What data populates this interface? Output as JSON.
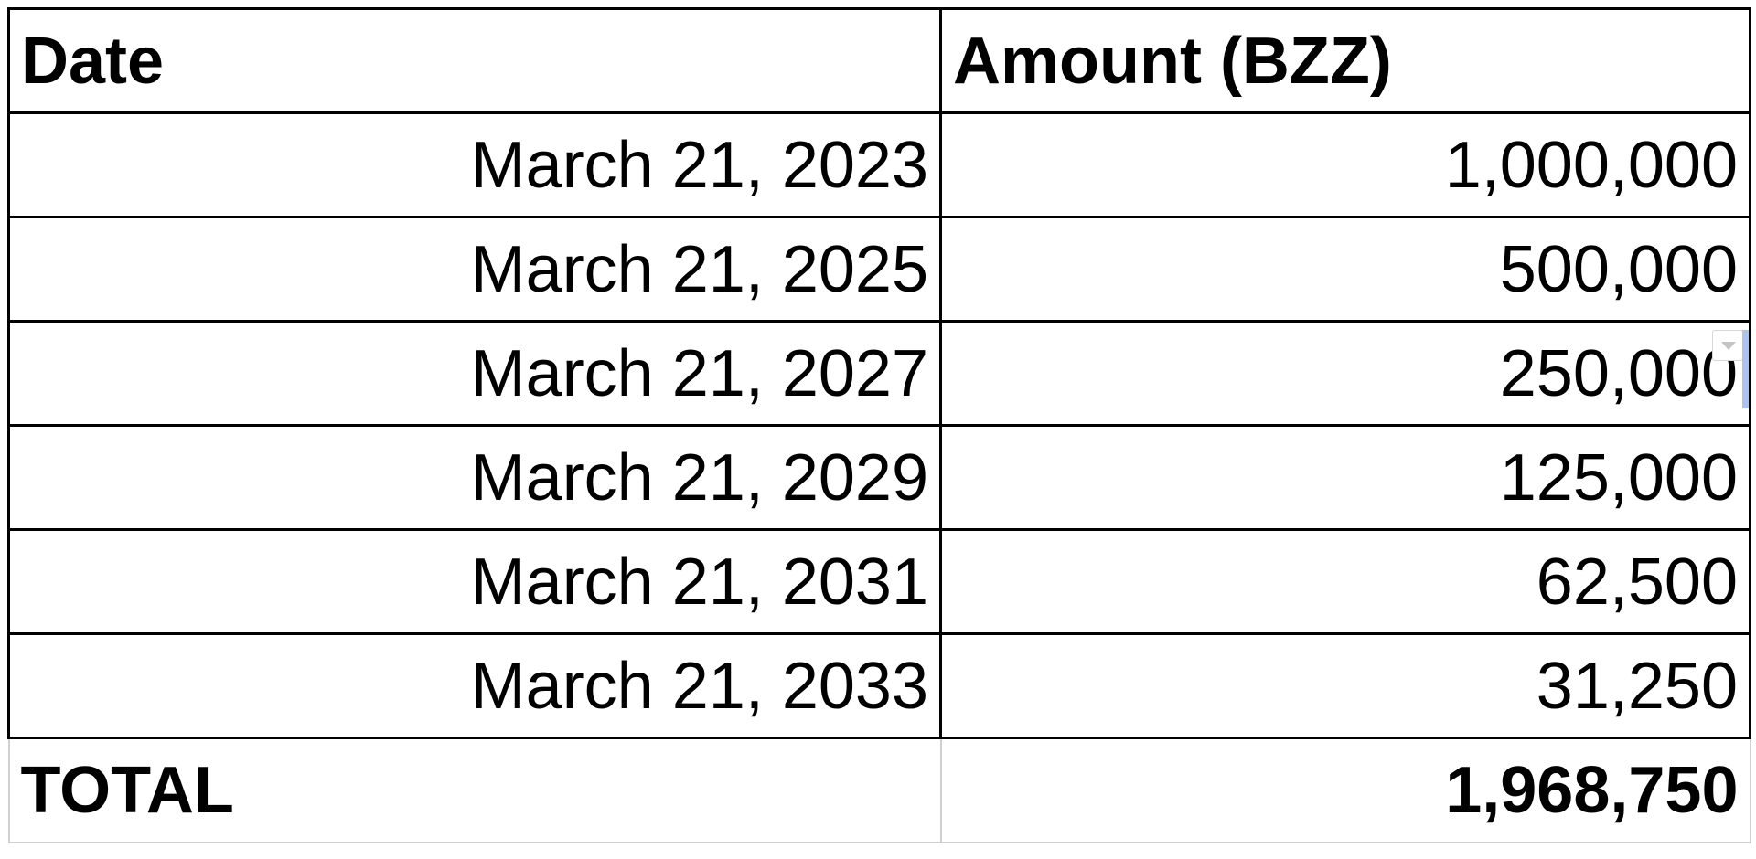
{
  "table": {
    "headers": {
      "date": "Date",
      "amount": "Amount (BZZ)"
    },
    "rows": [
      {
        "date": "March 21, 2023",
        "amount": "1,000,000"
      },
      {
        "date": "March 21, 2025",
        "amount": "500,000"
      },
      {
        "date": "March 21, 2027",
        "amount": "250,000"
      },
      {
        "date": "March 21, 2029",
        "amount": "125,000"
      },
      {
        "date": "March 21, 2031",
        "amount": "62,500"
      },
      {
        "date": "March 21, 2033",
        "amount": "31,250"
      }
    ],
    "total": {
      "label": "TOTAL",
      "value": "1,968,750"
    }
  },
  "colors": {
    "grid_border": "#000000",
    "total_border": "#d0d0d0",
    "selection": "#aac4ee"
  },
  "icons": {
    "cell_dropdown": "chevron-down-icon"
  }
}
